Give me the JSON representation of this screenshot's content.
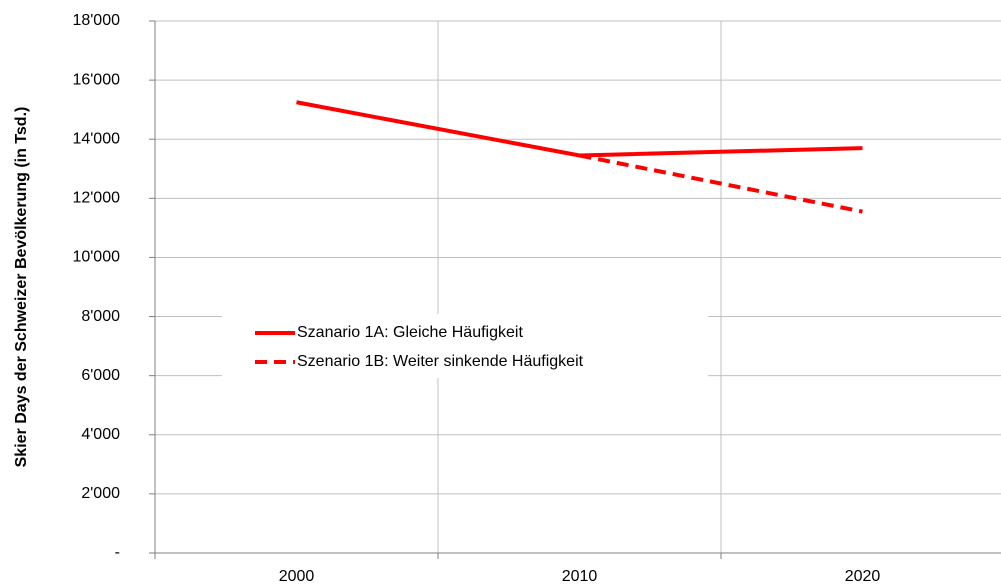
{
  "chart_data": {
    "type": "line",
    "y_label": "Skier Days der Schweizer Bevölkerung (in Tsd.)",
    "categories": [
      "2000",
      "2010",
      "2020"
    ],
    "series": [
      {
        "name": "Szanario 1A: Gleiche Häufigkeit",
        "color": "#ff0000",
        "dashed": false,
        "values": [
          15250,
          13450,
          13700
        ]
      },
      {
        "name": "Szenario 1B: Weiter sinkende Häufigkeit",
        "color": "#ff0000",
        "dashed": true,
        "values": [
          null,
          13450,
          11550
        ]
      }
    ],
    "ylim": [
      0,
      18000
    ],
    "yticks": [
      {
        "value": 0,
        "label": "-"
      },
      {
        "value": 2000,
        "label": "2'000"
      },
      {
        "value": 4000,
        "label": "4'000"
      },
      {
        "value": 6000,
        "label": "6'000"
      },
      {
        "value": 8000,
        "label": "8'000"
      },
      {
        "value": 10000,
        "label": "10'000"
      },
      {
        "value": 12000,
        "label": "12'000"
      },
      {
        "value": 14000,
        "label": "14'000"
      },
      {
        "value": 16000,
        "label": "16'000"
      },
      {
        "value": 18000,
        "label": "18'000"
      }
    ],
    "grid": true
  }
}
